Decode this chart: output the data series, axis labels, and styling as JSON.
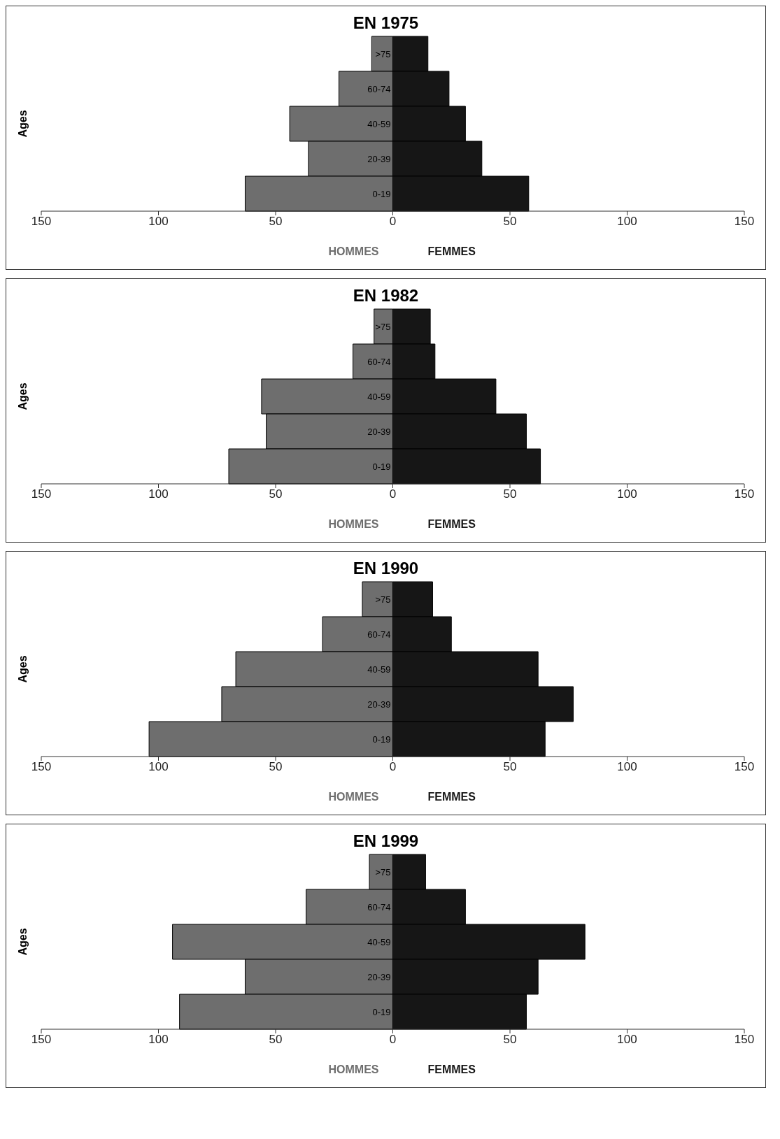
{
  "chart_data": [
    {
      "type": "bar",
      "orientation": "horizontal",
      "stacked": true,
      "title": "EN 1975",
      "ylabel": "Ages",
      "categories": [
        ">75",
        "60-74",
        "40-59",
        "20-39",
        "0-19"
      ],
      "series": [
        {
          "name": "HOMMES",
          "color": "#6e6e6e",
          "values": [
            -9,
            -23,
            -44,
            -36,
            -63
          ]
        },
        {
          "name": "FEMMES",
          "color": "#161616",
          "values": [
            15,
            24,
            31,
            38,
            58
          ]
        }
      ],
      "xlim": [
        -150,
        150
      ],
      "xticks": [
        {
          "value": -150,
          "label": "150"
        },
        {
          "value": -100,
          "label": "100"
        },
        {
          "value": -50,
          "label": "50"
        },
        0,
        50,
        100,
        150
      ],
      "grid": false
    },
    {
      "type": "bar",
      "orientation": "horizontal",
      "stacked": true,
      "title": "EN 1982",
      "ylabel": "Ages",
      "categories": [
        ">75",
        "60-74",
        "40-59",
        "20-39",
        "0-19"
      ],
      "series": [
        {
          "name": "HOMMES",
          "color": "#6e6e6e",
          "values": [
            -8,
            -17,
            -56,
            -54,
            -70
          ]
        },
        {
          "name": "FEMMES",
          "color": "#161616",
          "values": [
            16,
            18,
            44,
            57,
            63
          ]
        }
      ],
      "xlim": [
        -150,
        150
      ],
      "xticks": [
        {
          "value": -150,
          "label": "150"
        },
        {
          "value": -100,
          "label": "100"
        },
        {
          "value": -50,
          "label": "50"
        },
        0,
        50,
        100,
        150
      ],
      "grid": false
    },
    {
      "type": "bar",
      "orientation": "horizontal",
      "stacked": true,
      "title": "EN 1990",
      "ylabel": "Ages",
      "categories": [
        ">75",
        "60-74",
        "40-59",
        "20-39",
        "0-19"
      ],
      "series": [
        {
          "name": "HOMMES",
          "color": "#6e6e6e",
          "values": [
            -13,
            -30,
            -67,
            -73,
            -104
          ]
        },
        {
          "name": "FEMMES",
          "color": "#161616",
          "values": [
            17,
            25,
            62,
            77,
            65
          ]
        }
      ],
      "xlim": [
        -150,
        150
      ],
      "xticks": [
        {
          "value": -150,
          "label": "150"
        },
        {
          "value": -100,
          "label": "100"
        },
        {
          "value": -50,
          "label": "50"
        },
        0,
        50,
        100,
        150
      ],
      "grid": false
    },
    {
      "type": "bar",
      "orientation": "horizontal",
      "stacked": true,
      "title": "EN 1999",
      "ylabel": "Ages",
      "categories": [
        ">75",
        "60-74",
        "40-59",
        "20-39",
        "0-19"
      ],
      "series": [
        {
          "name": "HOMMES",
          "color": "#6e6e6e",
          "values": [
            -10,
            -37,
            -94,
            -63,
            -91
          ]
        },
        {
          "name": "FEMMES",
          "color": "#161616",
          "values": [
            14,
            31,
            82,
            62,
            57
          ]
        }
      ],
      "xlim": [
        -150,
        150
      ],
      "xticks": [
        {
          "value": -150,
          "label": "150"
        },
        {
          "value": -100,
          "label": "100"
        },
        {
          "value": -50,
          "label": "50"
        },
        0,
        50,
        100,
        150
      ],
      "grid": false
    }
  ]
}
